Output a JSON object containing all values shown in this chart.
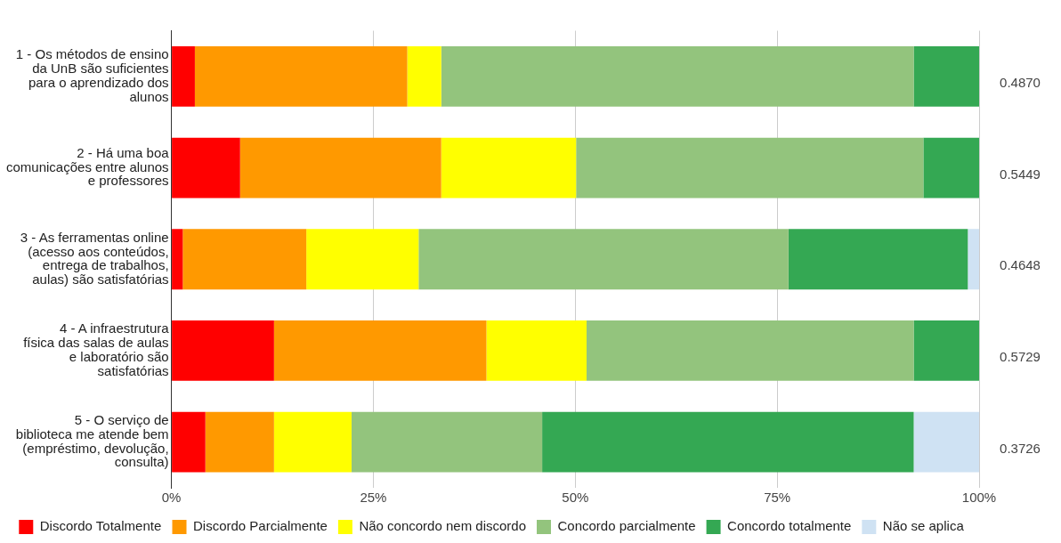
{
  "chart_data": {
    "type": "bar",
    "orientation": "horizontal",
    "stacked": true,
    "categories": [
      "1 - Os métodos de ensino da UnB são suficientes para o aprendizado dos alunos",
      "2 - Há uma boa comunicações entre alunos e professores",
      "3 - As ferramentas online (acesso aos conteúdos, entrega de trabalhos, aulas) são satisfatórias",
      "4 - A infraestrutura física das salas de aulas e laboratório são satisfatórias",
      "5 - O serviço de biblioteca me atende bem (empréstimo, devolução, consulta)"
    ],
    "series": [
      {
        "name": "Discordo Totalmente",
        "color": "#ff0000",
        "values": [
          2.9,
          8.5,
          1.4,
          12.7,
          4.2
        ]
      },
      {
        "name": "Discordo Parcialmente",
        "color": "#ff9900",
        "values": [
          26.3,
          24.9,
          15.3,
          26.3,
          8.5
        ]
      },
      {
        "name": "Não concordo nem discordo",
        "color": "#ffff00",
        "values": [
          4.2,
          16.7,
          13.9,
          12.4,
          9.6
        ]
      },
      {
        "name": "Concordo parcialmente",
        "color": "#93c47d",
        "values": [
          58.5,
          43.0,
          45.8,
          40.5,
          23.6
        ]
      },
      {
        "name": "Concordo totalmente",
        "color": "#34a853",
        "values": [
          8.1,
          6.9,
          22.2,
          8.1,
          46.0
        ]
      },
      {
        "name": "Não se aplica",
        "color": "#cfe2f3",
        "values": [
          0,
          0,
          1.4,
          0,
          8.1
        ]
      }
    ],
    "xlim": [
      0,
      100
    ],
    "xticks": [
      {
        "value": 0,
        "label": "0%"
      },
      {
        "value": 25,
        "label": "25%"
      },
      {
        "value": 50,
        "label": "50%"
      },
      {
        "value": 75,
        "label": "75%"
      },
      {
        "value": 100,
        "label": "100%"
      }
    ],
    "grid": "x",
    "legend": "bottom",
    "annotations": [
      "0.4870",
      "0.5449",
      "0.4648",
      "0.5729",
      "0.3726"
    ]
  }
}
